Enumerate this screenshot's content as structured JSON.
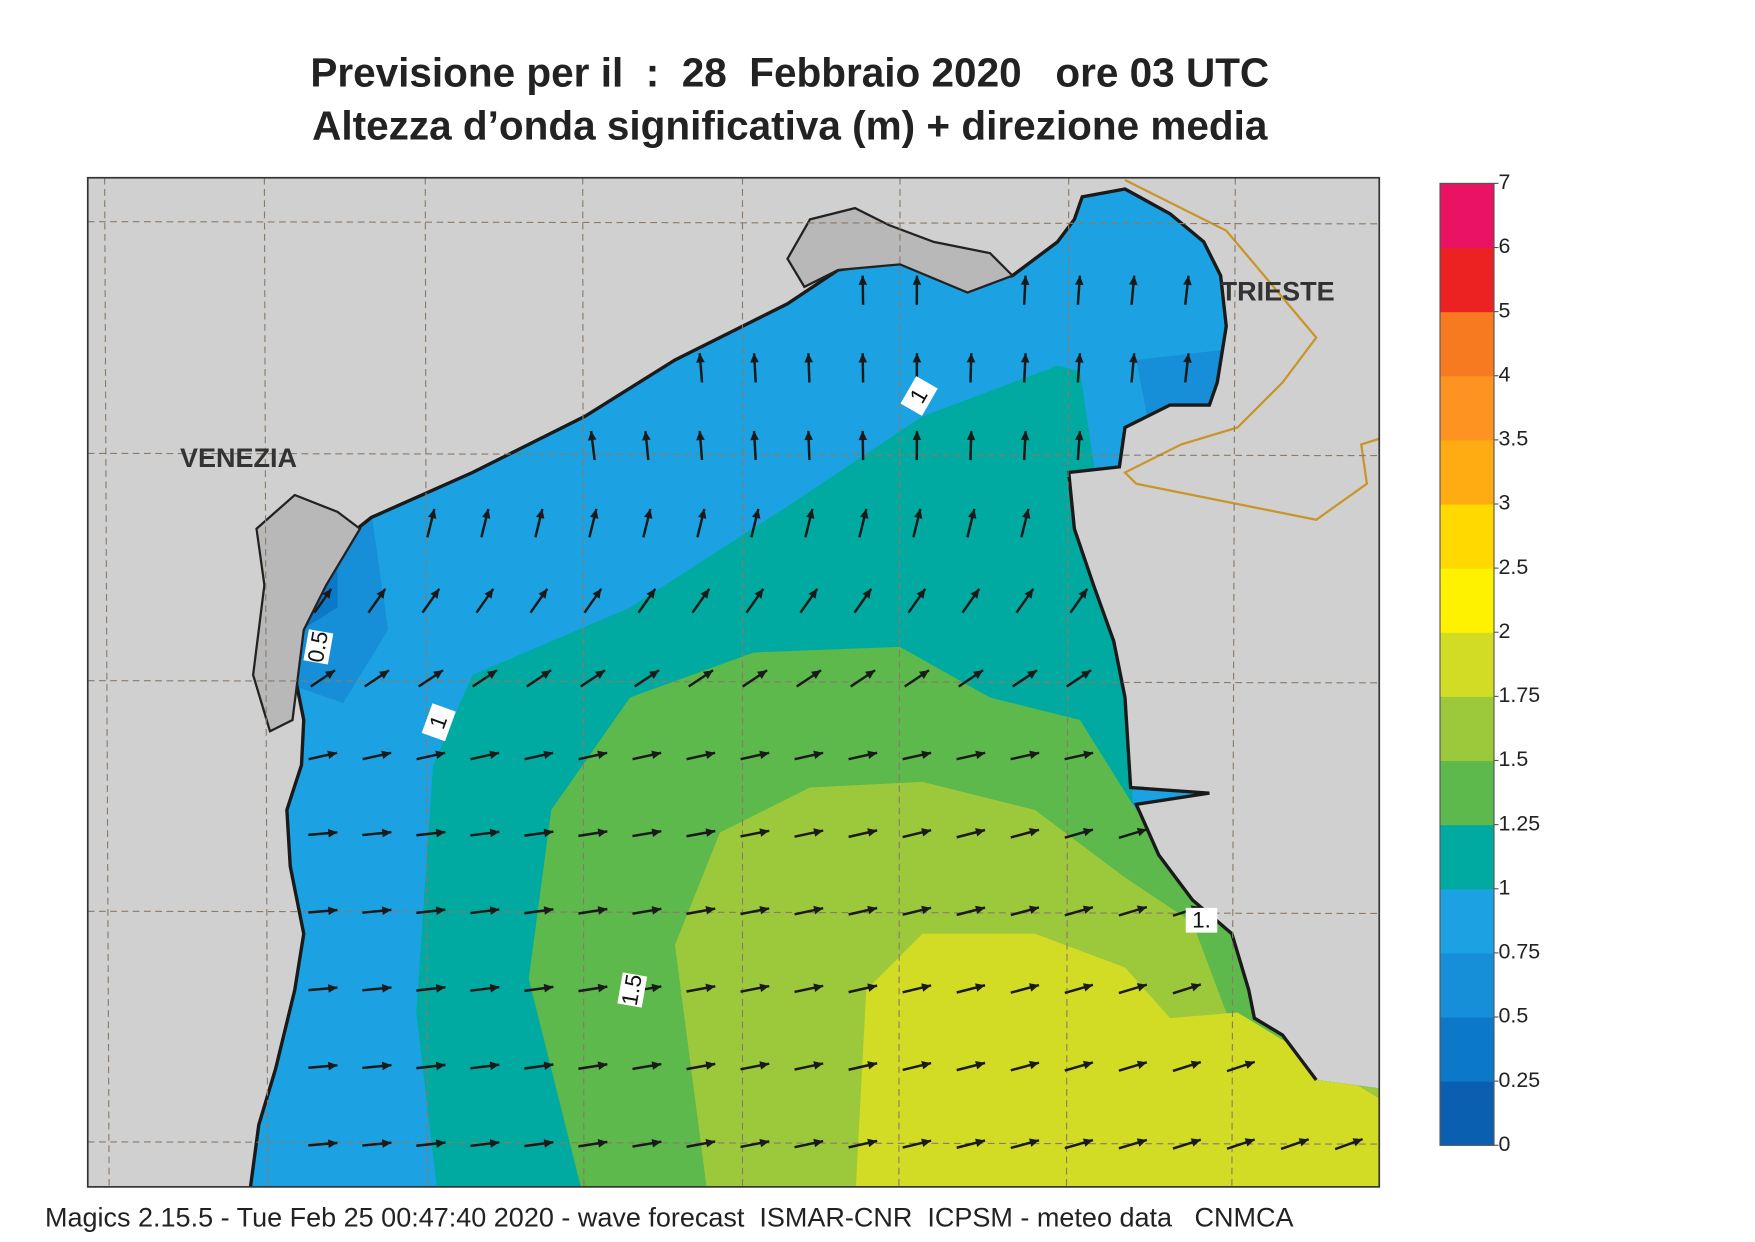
{
  "header": {
    "title": "Previsione per il  :  28  Febbraio 2020   ore 03 UTC",
    "subtitle": "Altezza d’onda significativa (m) + direzione media"
  },
  "map": {
    "places": [
      "VENEZIA",
      "TRIESTE"
    ],
    "contour_labels": [
      "0.5",
      "1",
      "1",
      "1.5",
      "1."
    ]
  },
  "colorbar": {
    "ticks": [
      0,
      0.25,
      0.5,
      0.75,
      1,
      1.25,
      1.5,
      1.75,
      2,
      2.5,
      3,
      3.5,
      4,
      5,
      6,
      7
    ],
    "colors": [
      "#0b5fb0",
      "#0c79c8",
      "#168fd8",
      "#1ca2e2",
      "#00aaa0",
      "#5db94b",
      "#9cc93b",
      "#d3dc24",
      "#fff200",
      "#ffd900",
      "#ffac12",
      "#ff9322",
      "#f77a21",
      "#ec2222",
      "#ea1262"
    ]
  },
  "footer": "Magics 2.15.5 - Tue Feb 25 00:47:40 2020 - wave forecast  ISMAR-CNR  ICPSM - meteo data   CNMCA"
}
